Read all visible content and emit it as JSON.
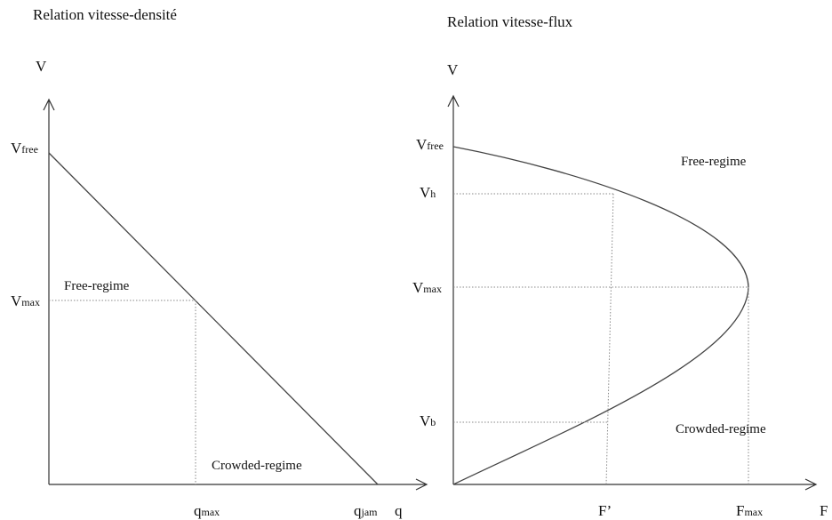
{
  "left": {
    "title": "Relation vitesse-densité",
    "y_axis": "V",
    "x_axis": "q",
    "y_labels": [
      {
        "main": "V",
        "sub": "free"
      },
      {
        "main": "V",
        "sub": "max"
      }
    ],
    "x_labels": [
      {
        "main": "q",
        "sub": "max"
      },
      {
        "main": "q",
        "sub": "jam"
      }
    ],
    "regions": [
      "Free-regime",
      "Crowded-regime"
    ]
  },
  "right": {
    "title": "Relation vitesse-flux",
    "y_axis": "V",
    "x_axis": "F",
    "y_labels": [
      {
        "main": "V",
        "sub": "free"
      },
      {
        "main": "V",
        "sub": "h"
      },
      {
        "main": "V",
        "sub": "max"
      },
      {
        "main": "V",
        "sub": "b"
      }
    ],
    "x_labels": [
      {
        "main": "F’"
      },
      {
        "main": "F",
        "sub": "max"
      }
    ],
    "regions": [
      "Free-regime",
      "Crowded-regime"
    ]
  }
}
